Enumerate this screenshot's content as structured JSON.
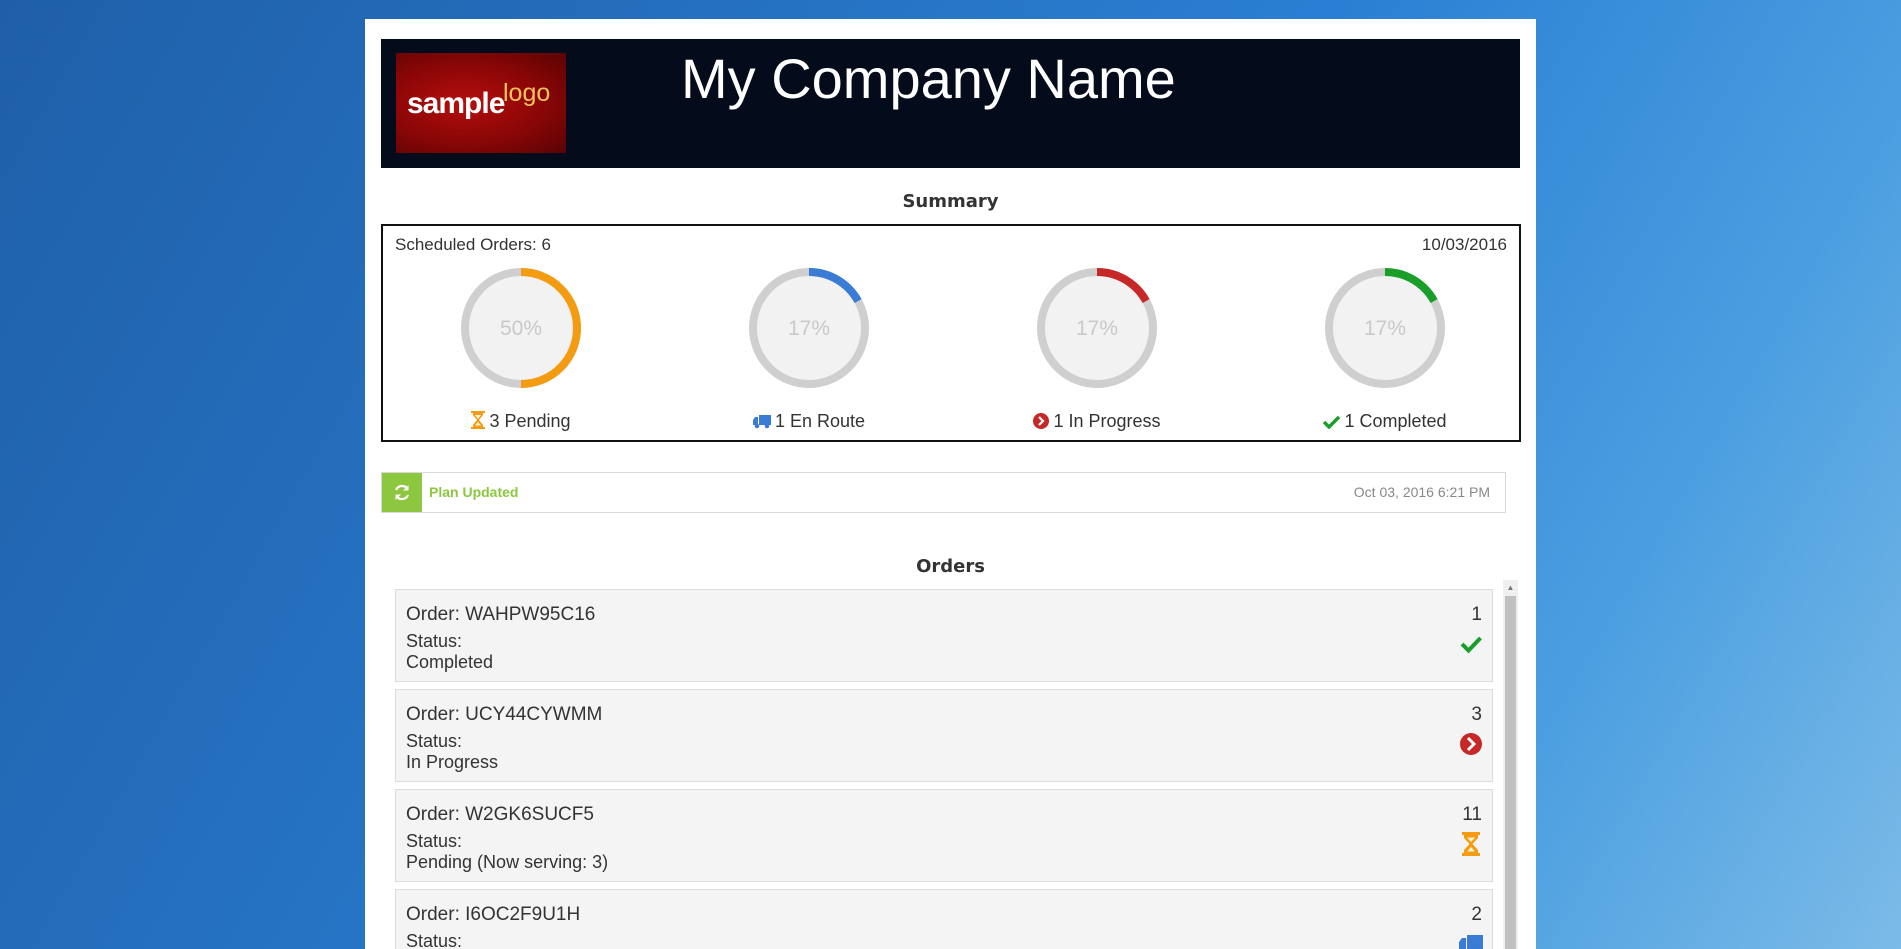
{
  "header": {
    "logo": {
      "word1": "sample",
      "word2": "logo"
    },
    "company_name": "My Company Name"
  },
  "summary": {
    "title": "Summary",
    "scheduled_orders": "Scheduled Orders: 6",
    "date": "10/03/2016",
    "stats": [
      {
        "percent_label": "50%",
        "fraction": 0.5,
        "color": "#f39c12",
        "label": "3 Pending",
        "icon": "hourglass-icon"
      },
      {
        "percent_label": "17%",
        "fraction": 0.17,
        "color": "#3a7bd5",
        "label": "1 En Route",
        "icon": "truck-icon"
      },
      {
        "percent_label": "17%",
        "fraction": 0.17,
        "color": "#c62828",
        "label": "1 In Progress",
        "icon": "chevron-circle-right-icon"
      },
      {
        "percent_label": "17%",
        "fraction": 0.17,
        "color": "#1a9e2a",
        "label": "1 Completed",
        "icon": "check-icon"
      }
    ]
  },
  "alert": {
    "icon": "refresh-icon",
    "text": "Plan Updated",
    "timestamp": "Oct 03, 2016 6:21 PM"
  },
  "orders": {
    "title": "Orders",
    "items": [
      {
        "order": "Order: WAHPW95C16",
        "status_label": "Status:",
        "status": "Completed",
        "number": "1",
        "icon": "check-icon"
      },
      {
        "order": "Order: UCY44CYWMM",
        "status_label": "Status:",
        "status": "In Progress",
        "number": "3",
        "icon": "chevron-circle-right-icon"
      },
      {
        "order": "Order: W2GK6SUCF5",
        "status_label": "Status:",
        "status": "Pending (Now serving: 3)",
        "number": "11",
        "icon": "hourglass-icon"
      },
      {
        "order": "Order: I6OC2F9U1H",
        "status_label": "Status:",
        "status": "",
        "number": "2",
        "icon": "truck-icon"
      }
    ]
  },
  "colors": {
    "header_bg": "#040b1a",
    "pending": "#f39c12",
    "en_route": "#3a7bd5",
    "in_progress": "#c62828",
    "completed": "#1a9e2a",
    "alert_green": "#8dc63f"
  }
}
